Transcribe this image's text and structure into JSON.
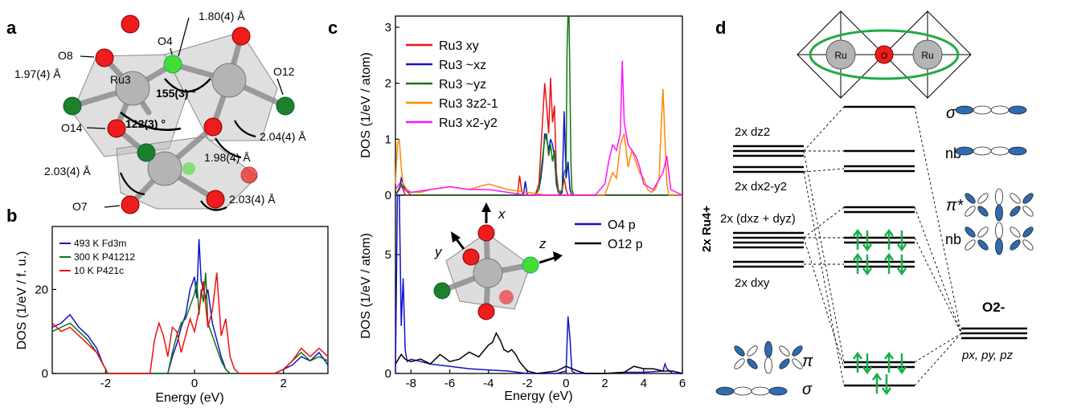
{
  "colors": {
    "red": "#ee1111",
    "blue": "#1111cc",
    "green": "#117711",
    "orange": "#ff8800",
    "magenta": "#ff11ff",
    "black": "#000000",
    "atom_red": "#ee1c1c",
    "atom_green": "#1e7f2c",
    "atom_lime": "#44dd33",
    "atom_gray": "#b4b4b4",
    "arrow_green": "#18b04a",
    "orbital": "#2e6bb0"
  },
  "panels": {
    "a": {
      "letter": "a",
      "labels": {
        "ru3": "Ru3",
        "o4": "O4",
        "o8": "O8",
        "o12": "O12",
        "o14": "O14",
        "o7": "O7",
        "d1": "1.80(4) Å",
        "d2": "1.97(4) Å",
        "d3": "2.04(4) Å",
        "d4": "1.98(4) Å",
        "d5": "2.03(4) Å",
        "d6": "2.03(4) Å",
        "angle1": "155(3) °",
        "angle2": "122(3) °"
      }
    },
    "b": {
      "letter": "b",
      "xlabel": "Energy (eV)",
      "ylabel": "DOS (1/eV / f. u.)",
      "xticks": [
        "-2",
        "0",
        "2"
      ],
      "yticks": [
        "0",
        "20"
      ],
      "legend": [
        "493 K Fd3m",
        "300 K P41212",
        "10 K P421c"
      ]
    },
    "c": {
      "letter": "c",
      "top_ylabel": "DOS (1/eV / atom)",
      "bottom_ylabel": "DOS (1/eV / atom)",
      "xlabel": "Energy (eV)",
      "xticks": [
        "-8",
        "-6",
        "-4",
        "-2",
        "0",
        "2",
        "4",
        "6"
      ],
      "top_yticks": [
        "0",
        "1",
        "2",
        "3"
      ],
      "bottom_yticks": [
        "0",
        "5"
      ],
      "top_legend": [
        "Ru3 xy",
        "Ru3 ~xz",
        "Ru3 ~yz",
        "Ru3 3z2-1",
        "Ru3 x2-y2"
      ],
      "bottom_legend": [
        "O4 p",
        "O12 p"
      ],
      "axes_labels": {
        "x": "x",
        "y": "y",
        "z": "z"
      }
    },
    "d": {
      "letter": "d",
      "ru_label": "2x Ru4+",
      "o_label": "O2-",
      "o_orbitals": "px, py, pz",
      "left_levels": [
        "2x dz2",
        "2x dx2-y2",
        "2x (dxz + dyz)",
        "2x dxy"
      ],
      "right_labels": [
        "σ*",
        "nb",
        "π*",
        "nb",
        "π",
        "σ"
      ],
      "atom_labels": [
        "Ru",
        "O",
        "Ru"
      ]
    }
  },
  "chart_data": [
    {
      "panel": "b",
      "type": "line",
      "xlabel": "Energy (eV)",
      "ylabel": "DOS (1/eV / f. u.)",
      "xlim": [
        -3.2,
        3.0
      ],
      "ylim": [
        0,
        35
      ],
      "series": [
        {
          "name": "493 K Fd3m",
          "color": "#1111cc",
          "x": [
            -3.2,
            -3.0,
            -2.8,
            -2.6,
            -2.4,
            -2.2,
            -2.05,
            -1.95,
            -1.8,
            -1.5,
            -1.0,
            -0.6,
            -0.5,
            -0.4,
            -0.3,
            -0.2,
            -0.1,
            0.0,
            0.05,
            0.1,
            0.15,
            0.2,
            0.25,
            0.3,
            0.4,
            0.5,
            0.6,
            0.7,
            0.8,
            0.9,
            1.0,
            1.2,
            1.5,
            1.8,
            2.0,
            2.2,
            2.4,
            2.6,
            2.8,
            3.0
          ],
          "y": [
            11,
            12,
            14,
            11,
            9,
            6,
            2,
            0,
            0,
            0,
            0,
            0,
            4,
            7,
            11,
            14,
            20,
            23,
            18,
            32,
            22,
            20,
            18,
            20,
            12,
            8,
            4,
            1,
            0,
            0,
            0,
            0,
            0,
            0,
            1,
            2,
            4,
            3,
            5,
            2
          ]
        },
        {
          "name": "300 K P41212",
          "color": "#117711",
          "x": [
            -3.2,
            -3.0,
            -2.8,
            -2.6,
            -2.4,
            -2.2,
            -2.05,
            -1.95,
            -1.8,
            -1.5,
            -1.0,
            -0.6,
            -0.5,
            -0.4,
            -0.3,
            -0.2,
            -0.1,
            0.0,
            0.05,
            0.1,
            0.15,
            0.2,
            0.25,
            0.3,
            0.4,
            0.5,
            0.6,
            0.7,
            0.8,
            0.9,
            1.0,
            1.2,
            1.5,
            1.8,
            2.0,
            2.2,
            2.4,
            2.6,
            2.8,
            3.0
          ],
          "y": [
            10,
            11,
            12,
            10,
            8,
            5,
            2,
            0,
            0,
            0,
            0,
            0,
            5,
            9,
            12,
            13,
            16,
            19,
            22,
            14,
            20,
            17,
            24,
            12,
            9,
            6,
            3,
            1,
            0,
            0,
            0,
            0,
            0,
            0,
            1,
            3,
            5,
            3,
            4,
            3
          ]
        },
        {
          "name": "10 K P421c",
          "color": "#ee1111",
          "x": [
            -3.2,
            -3.0,
            -2.8,
            -2.6,
            -2.4,
            -2.2,
            -2.05,
            -1.95,
            -1.8,
            -1.5,
            -1.0,
            -0.9,
            -0.8,
            -0.7,
            -0.6,
            -0.5,
            -0.4,
            -0.3,
            -0.2,
            -0.1,
            0.0,
            0.1,
            0.2,
            0.3,
            0.4,
            0.5,
            0.6,
            0.7,
            0.8,
            0.9,
            1.0,
            1.2,
            1.5,
            1.8,
            2.0,
            2.2,
            2.4,
            2.6,
            2.8,
            3.0
          ],
          "y": [
            12,
            10,
            11,
            9,
            7,
            5,
            2,
            0,
            0,
            0,
            0,
            8,
            12,
            9,
            4,
            11,
            10,
            5,
            9,
            13,
            10,
            15,
            22,
            11,
            15,
            24,
            9,
            13,
            4,
            1,
            0,
            0,
            0,
            0,
            1,
            3,
            6,
            4,
            6,
            4
          ]
        }
      ]
    },
    {
      "panel": "c-top",
      "type": "line",
      "ylabel": "DOS (1/eV / atom)",
      "xlim": [
        -8.8,
        6.0
      ],
      "ylim": [
        0,
        3.2
      ],
      "series": [
        {
          "name": "Ru3 xy",
          "color": "#ee1111",
          "x": [
            -8.8,
            -8.5,
            -8.3,
            -8.0,
            -6,
            -3,
            -2.5,
            -2.4,
            -2.3,
            -2.2,
            -2.0,
            -1.6,
            -1.4,
            -1.3,
            -1.2,
            -1.1,
            -1.0,
            -0.9,
            -0.8,
            -0.7,
            -0.6,
            -0.5,
            -0.4,
            -0.3,
            -0.2,
            -0.1,
            0.0,
            0.1,
            0.2,
            0.3,
            0.4,
            0.5,
            1.0,
            2.0,
            3.0,
            4.0,
            5.0,
            6.0
          ],
          "y": [
            0,
            0.2,
            0,
            0,
            0,
            0,
            0,
            0.35,
            0.1,
            0,
            0,
            0,
            0.2,
            0.8,
            1.4,
            2.0,
            1.6,
            1.1,
            2.1,
            1.3,
            1.6,
            0.4,
            0.1,
            0.05,
            0.1,
            0.3,
            0.1,
            0,
            0,
            0,
            0,
            0,
            0,
            0,
            0,
            0,
            0,
            0
          ]
        },
        {
          "name": "Ru3 ~xz",
          "color": "#1111cc",
          "x": [
            -8.8,
            -8.6,
            -8.5,
            -8.3,
            -8.0,
            -6,
            -3,
            -2.5,
            -2.2,
            -2.1,
            -2.0,
            -1.6,
            -1.4,
            -1.3,
            -1.2,
            -1.1,
            -1.0,
            -0.9,
            -0.8,
            -0.7,
            -0.6,
            -0.5,
            -0.4,
            -0.3,
            -0.2,
            -0.1,
            0.0,
            0.1,
            0.2,
            0.3,
            0.4,
            0.5,
            1.0,
            2.0,
            3.0,
            4.0,
            5.0,
            6.0
          ],
          "y": [
            0,
            0.1,
            0.3,
            0.1,
            0,
            0,
            0,
            0,
            0,
            0.25,
            0,
            0,
            0.1,
            0.3,
            0.6,
            1.1,
            1.0,
            0.8,
            1.0,
            0.9,
            0.7,
            0.2,
            0.05,
            0,
            0.05,
            1.5,
            0.3,
            0.6,
            0.1,
            0,
            0,
            0,
            0,
            0,
            0,
            0,
            0,
            0
          ]
        },
        {
          "name": "Ru3 ~yz",
          "color": "#117711",
          "x": [
            -8.8,
            -8.6,
            -8.5,
            -8.3,
            -8.0,
            -6,
            -3,
            -2.5,
            -2.0,
            -1.6,
            -1.4,
            -1.3,
            -1.2,
            -1.1,
            -1.0,
            -0.9,
            -0.8,
            -0.7,
            -0.6,
            -0.5,
            -0.4,
            -0.3,
            -0.2,
            -0.1,
            0.0,
            0.05,
            0.1,
            0.15,
            0.2,
            0.25,
            0.3,
            0.4,
            0.5,
            1.0,
            2.0,
            3.0,
            4.0,
            5.0,
            6.0
          ],
          "y": [
            0,
            0.1,
            0.2,
            0.1,
            0,
            0,
            0,
            0,
            0,
            0,
            0.1,
            0.4,
            0.7,
            1.0,
            1.1,
            0.7,
            0.9,
            0.6,
            0.8,
            0.3,
            0.05,
            0,
            0.1,
            0.4,
            0.5,
            2.6,
            3.2,
            3.2,
            2.0,
            0.6,
            0.1,
            0,
            0,
            0,
            0,
            0,
            0,
            0,
            0
          ]
        },
        {
          "name": "Ru3 3z2-1",
          "color": "#ff8800",
          "x": [
            -8.8,
            -8.7,
            -8.6,
            -8.5,
            -8.4,
            -8.2,
            -8.0,
            -7.5,
            -7,
            -6,
            -5,
            -4,
            -3,
            -2.0,
            -1.0,
            0.0,
            1.5,
            2.0,
            2.2,
            2.4,
            2.6,
            2.8,
            3.0,
            3.2,
            3.4,
            3.6,
            3.8,
            4.0,
            4.2,
            4.4,
            4.6,
            4.8,
            4.9,
            5.0,
            5.1,
            5.2,
            5.3,
            5.5,
            6.0
          ],
          "y": [
            0.2,
            0.9,
            1.0,
            0.5,
            0.2,
            0.1,
            0.05,
            0.05,
            0.1,
            0.15,
            0.1,
            0.2,
            0.1,
            0.05,
            0,
            0,
            0,
            0,
            0.2,
            0.4,
            0.3,
            0.9,
            1.1,
            0.5,
            0.8,
            0.6,
            0.4,
            0.3,
            0.1,
            0.05,
            0.1,
            0.3,
            1.2,
            1.9,
            1.0,
            0.2,
            0,
            0,
            0
          ]
        },
        {
          "name": "Ru3 x2-y2",
          "color": "#ff11ff",
          "x": [
            -8.8,
            -8.6,
            -8.4,
            -8.0,
            -7,
            -6,
            -5,
            -4,
            -3,
            -2.0,
            -1.0,
            0.0,
            1.5,
            2.0,
            2.2,
            2.4,
            2.6,
            2.8,
            2.9,
            3.0,
            3.1,
            3.2,
            3.4,
            3.6,
            3.8,
            4.0,
            4.5,
            5.0,
            5.2,
            5.4,
            6.0
          ],
          "y": [
            0.1,
            0.2,
            0.1,
            0.05,
            0.1,
            0.15,
            0.1,
            0.1,
            0.05,
            0,
            0,
            0,
            0,
            0.2,
            0.6,
            0.9,
            0.8,
            1.1,
            2.4,
            1.3,
            1.1,
            0.9,
            0.8,
            0.7,
            0.5,
            0.2,
            0.1,
            0.4,
            0.7,
            0.1,
            0
          ]
        }
      ]
    },
    {
      "panel": "c-bottom",
      "type": "line",
      "xlabel": "Energy (eV)",
      "ylabel": "DOS (1/eV / atom)",
      "xlim": [
        -8.8,
        6.0
      ],
      "ylim": [
        0,
        7.5
      ],
      "series": [
        {
          "name": "O4 p",
          "color": "#1111cc",
          "x": [
            -8.8,
            -8.7,
            -8.6,
            -8.5,
            -8.4,
            -8.3,
            -8.2,
            -8.0,
            -7.5,
            -7,
            -6,
            -5,
            -4,
            -3,
            -2.5,
            -2.0,
            -1.5,
            -1.0,
            -0.5,
            0.0,
            0.1,
            0.2,
            0.3,
            0.5,
            1.0,
            2.0,
            3.0,
            4.0,
            5.0,
            5.1,
            5.2,
            5.5,
            6.0
          ],
          "y": [
            0,
            7.5,
            7.5,
            2.0,
            4.0,
            1.0,
            0.5,
            0.6,
            0.5,
            0.4,
            0.3,
            0.2,
            0.15,
            0.1,
            0.05,
            0,
            0,
            0,
            0,
            0.1,
            2.4,
            1.5,
            0.1,
            0,
            0,
            0,
            0.05,
            0.05,
            0.1,
            0.4,
            0.2,
            0,
            0
          ]
        },
        {
          "name": "O12 p",
          "color": "#000000",
          "x": [
            -8.8,
            -8.5,
            -8.3,
            -8.0,
            -7.5,
            -7.0,
            -6.5,
            -6.0,
            -5.5,
            -5.0,
            -4.5,
            -4.0,
            -3.8,
            -3.6,
            -3.4,
            -3.2,
            -3.0,
            -2.8,
            -2.6,
            -2.4,
            -2.2,
            -2.0,
            -1.5,
            -1.0,
            -0.5,
            0.0,
            0.3,
            0.6,
            1.0,
            2.0,
            3.0,
            3.5,
            4.0,
            4.5,
            5.0,
            5.5,
            6.0
          ],
          "y": [
            0.4,
            0.8,
            0.6,
            0.5,
            0.6,
            0.4,
            0.8,
            0.5,
            0.6,
            0.9,
            0.7,
            1.2,
            1.3,
            1.7,
            1.4,
            1.0,
            0.9,
            1.0,
            0.8,
            0.5,
            0.3,
            0.1,
            0,
            0.05,
            0.1,
            0.3,
            0.2,
            0.1,
            0,
            0,
            0.05,
            0.3,
            0.2,
            0.2,
            0.1,
            0.1,
            0
          ]
        }
      ]
    }
  ]
}
